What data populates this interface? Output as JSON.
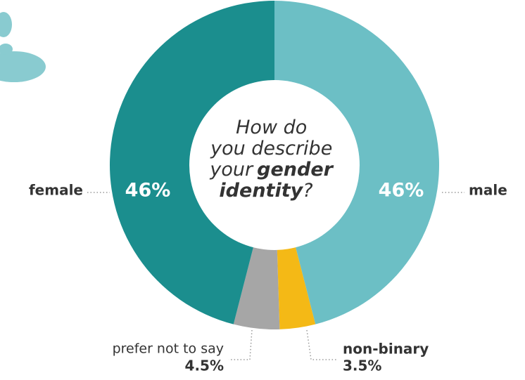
{
  "chart_data": {
    "type": "donut",
    "center_text": [
      "How do",
      "you describe",
      "your",
      "gender",
      "identity",
      "?"
    ],
    "categories": [
      "male",
      "non-binary",
      "prefer not to say",
      "female"
    ],
    "values": [
      46,
      3.5,
      4.5,
      46
    ],
    "value_labels": [
      "46%",
      "3.5%",
      "4.5%",
      "46%"
    ],
    "colors": [
      "#6cbfc5",
      "#f4b916",
      "#a6a6a6",
      "#1b8e8e"
    ]
  }
}
